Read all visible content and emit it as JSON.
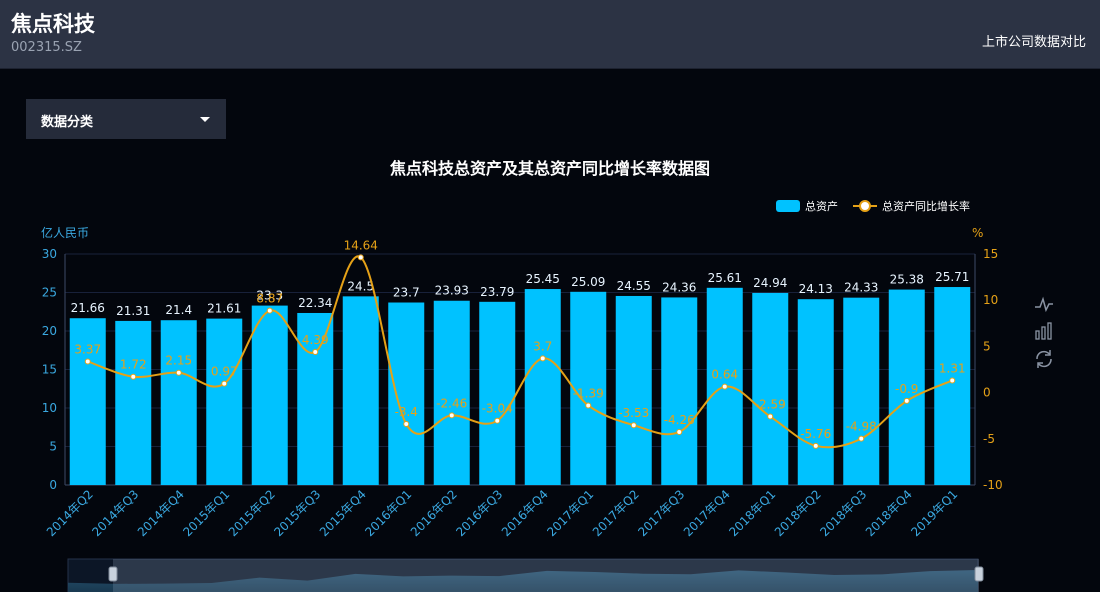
{
  "header": {
    "company_name": "焦点科技",
    "stock_code": "002315.SZ",
    "compare_link": "上市公司数据对比"
  },
  "filter": {
    "label": "数据分类"
  },
  "toolbox": {
    "icons": [
      "line-chart-icon",
      "bar-chart-icon",
      "restore-icon"
    ]
  },
  "chart_data": {
    "type": "bar",
    "title": "焦点科技总资产及其总资产同比增长率数据图",
    "categories": [
      "2014年Q2",
      "2014年Q3",
      "2014年Q4",
      "2015年Q1",
      "2015年Q2",
      "2015年Q3",
      "2015年Q4",
      "2016年Q1",
      "2016年Q2",
      "2016年Q3",
      "2016年Q4",
      "2017年Q1",
      "2017年Q2",
      "2017年Q3",
      "2017年Q4",
      "2018年Q1",
      "2018年Q2",
      "2018年Q3",
      "2018年Q4",
      "2019年Q1"
    ],
    "y_left": {
      "label": "亿人民币",
      "min": 0,
      "max": 30,
      "ticks": [
        0,
        5,
        10,
        15,
        20,
        25,
        30
      ]
    },
    "y_right": {
      "label": "%",
      "min": -10,
      "max": 15,
      "ticks": [
        -10,
        -5,
        0,
        5,
        10,
        15
      ]
    },
    "legend_position": "top-right",
    "grid": true,
    "series": [
      {
        "name": "总资产",
        "type": "bar",
        "axis": "left",
        "color": "#00c2ff",
        "values": [
          21.66,
          21.31,
          21.4,
          21.61,
          23.3,
          22.34,
          24.5,
          23.7,
          23.93,
          23.79,
          25.45,
          25.09,
          24.55,
          24.36,
          25.61,
          24.94,
          24.13,
          24.33,
          25.38,
          25.71
        ]
      },
      {
        "name": "总资产同比增长率",
        "type": "line",
        "axis": "right",
        "color": "#e5a117",
        "values": [
          3.37,
          1.72,
          2.15,
          0.97,
          8.87,
          4.39,
          14.64,
          -3.4,
          -2.46,
          -3.04,
          3.7,
          -1.39,
          -3.53,
          -4.26,
          0.64,
          -2.59,
          -5.76,
          -4.98,
          -0.9,
          1.31
        ]
      }
    ]
  }
}
